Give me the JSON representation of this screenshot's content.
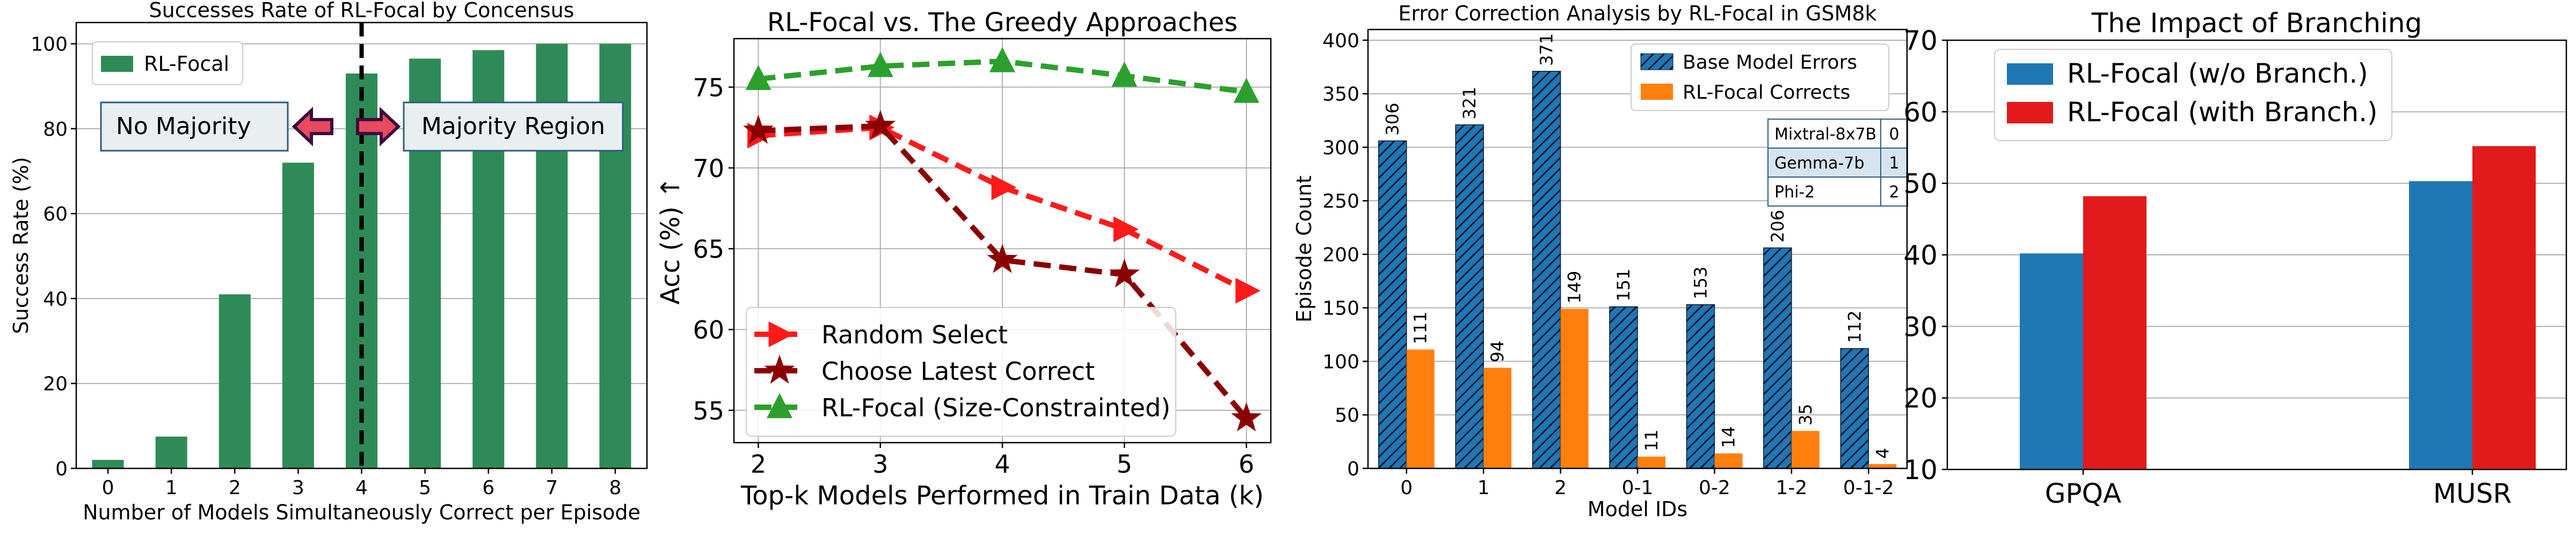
{
  "chart_data": [
    {
      "type": "bar",
      "title": "Successes Rate of RL-Focal by Concensus",
      "xlabel": "Number of Models Simultaneously Correct per Episode",
      "ylabel": "Success Rate (%)",
      "categories": [
        "0",
        "1",
        "2",
        "3",
        "4",
        "5",
        "6",
        "7",
        "8"
      ],
      "series": [
        {
          "name": "RL-Focal",
          "values": [
            2,
            7.5,
            41,
            72,
            93,
            96.5,
            98.5,
            100,
            100
          ]
        }
      ],
      "ylim": [
        0,
        105
      ],
      "yticks": [
        0,
        20,
        40,
        60,
        80,
        100
      ],
      "threshold_x": 4,
      "annotations": {
        "left": "No Majority",
        "right": "Majority Region"
      },
      "legend_position": "top-left",
      "colors": {
        "bar": "#2e8b57",
        "arrow_fill": "#e84a5f",
        "arrow_edge": "#3b0b3b",
        "box_fill": "#e9eef1",
        "box_edge": "#2c5d7e"
      }
    },
    {
      "type": "line",
      "title": "RL-Focal vs. The Greedy Approaches",
      "xlabel": "Top-k Models Performed in Train Data (k)",
      "ylabel": "Acc (%) ↑",
      "x": [
        2,
        3,
        4,
        5,
        6
      ],
      "series": [
        {
          "name": "Random Select",
          "values": [
            72.0,
            72.5,
            68.8,
            66.2,
            62.4
          ],
          "color": "#ff1a1a",
          "marker": "triangle-right"
        },
        {
          "name": "Choose Latest Correct",
          "values": [
            72.3,
            72.6,
            64.3,
            63.4,
            54.5
          ],
          "color": "#8b0000",
          "marker": "star"
        },
        {
          "name": "RL-Focal (Size-Constrainted)",
          "values": [
            75.5,
            76.3,
            76.6,
            75.7,
            74.7
          ],
          "color": "#2ca02c",
          "marker": "triangle-up"
        }
      ],
      "xlim": [
        1.8,
        6.2
      ],
      "ylim": [
        53,
        78
      ],
      "yticks": [
        55,
        60,
        65,
        70,
        75
      ],
      "legend_position": "lower-left"
    },
    {
      "type": "bar",
      "title": "Error Correction Analysis by RL-Focal in GSM8k",
      "xlabel": "Model IDs",
      "ylabel": "Episode Count",
      "categories": [
        "0",
        "1",
        "2",
        "0-1",
        "0-2",
        "1-2",
        "0-1-2"
      ],
      "series": [
        {
          "name": "Base Model Errors",
          "values": [
            306,
            321,
            371,
            151,
            153,
            206,
            112
          ],
          "color": "#1f77b4"
        },
        {
          "name": "RL-Focal Corrects",
          "values": [
            111,
            94,
            149,
            11,
            14,
            35,
            4
          ],
          "color": "#ff7f0e"
        }
      ],
      "ylim": [
        0,
        410
      ],
      "yticks": [
        0,
        50,
        100,
        150,
        200,
        250,
        300,
        350,
        400
      ],
      "legend_position": "top-right",
      "model_table": [
        {
          "name": "Mixtral-8x7B",
          "id": "0"
        },
        {
          "name": "Gemma-7b",
          "id": "1"
        },
        {
          "name": "Phi-2",
          "id": "2"
        }
      ]
    },
    {
      "type": "bar",
      "title": "The Impact of Branching",
      "xlabel": "",
      "ylabel": "",
      "categories": [
        "GPQA",
        "MUSR"
      ],
      "series": [
        {
          "name": "RL-Focal (w/o Branch.)",
          "values": [
            40.2,
            50.3
          ],
          "color": "#1f77b4"
        },
        {
          "name": "RL-Focal (with Branch.)",
          "values": [
            48.2,
            55.2
          ],
          "color": "#e31a1c"
        }
      ],
      "ylim": [
        10,
        70
      ],
      "yticks": [
        10,
        20,
        30,
        40,
        50,
        60,
        70
      ],
      "legend_position": "top-left"
    }
  ]
}
